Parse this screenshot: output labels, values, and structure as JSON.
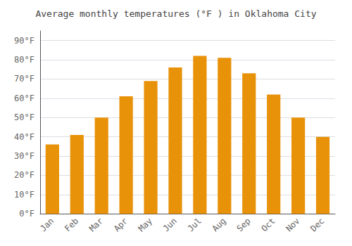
{
  "chart_data": {
    "type": "bar",
    "title": "Average monthly temperatures (°F ) in Oklahoma City",
    "categories": [
      "Jan",
      "Feb",
      "Mar",
      "Apr",
      "May",
      "Jun",
      "Jul",
      "Aug",
      "Sep",
      "Oct",
      "Nov",
      "Dec"
    ],
    "values": [
      36,
      41,
      50,
      61,
      69,
      76,
      82,
      81,
      73,
      62,
      50,
      40
    ],
    "color": "#E8920A",
    "ylim": [
      0,
      95
    ],
    "yticks": [
      {
        "value": 0,
        "label": "0°F"
      },
      {
        "value": 10,
        "label": "10°F"
      },
      {
        "value": 20,
        "label": "20°F"
      },
      {
        "value": 30,
        "label": "30°F"
      },
      {
        "value": 40,
        "label": "40°F"
      },
      {
        "value": 50,
        "label": "50°F"
      },
      {
        "value": 60,
        "label": "60°F"
      },
      {
        "value": 70,
        "label": "70°F"
      },
      {
        "value": 80,
        "label": "80°F"
      },
      {
        "value": 90,
        "label": "90°F"
      }
    ],
    "grid": true
  }
}
